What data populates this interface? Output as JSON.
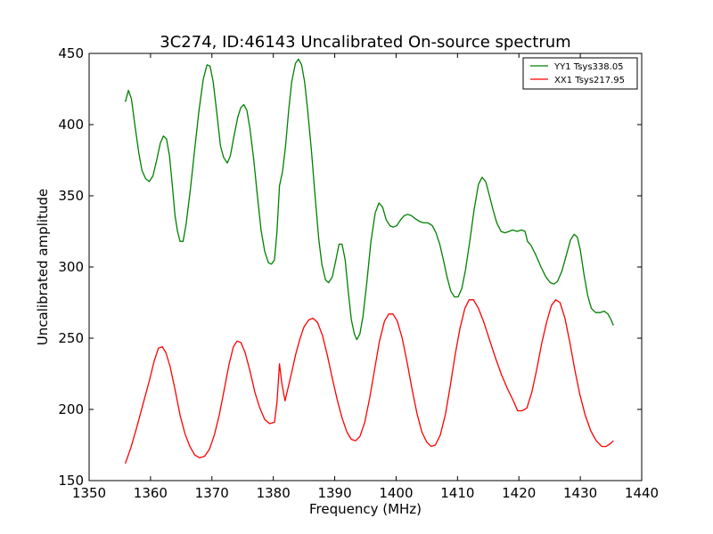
{
  "chart_data": {
    "type": "line",
    "title": "3C274, ID:46143 Uncalibrated On-source spectrum",
    "xlabel": "Frequency (MHz)",
    "ylabel": "Uncalibrated amplitude",
    "xlim": [
      1350,
      1440
    ],
    "ylim": [
      150,
      450
    ],
    "xticks": [
      1350,
      1360,
      1370,
      1380,
      1390,
      1400,
      1410,
      1420,
      1430,
      1440
    ],
    "yticks": [
      150,
      200,
      250,
      300,
      350,
      400,
      450
    ],
    "grid": false,
    "legend_position": "top-right",
    "series": [
      {
        "name": "YY1 Tsys338.05",
        "color": "#008000",
        "points": [
          [
            1355.9,
            416
          ],
          [
            1356.4,
            424
          ],
          [
            1356.9,
            418
          ],
          [
            1357.5,
            398
          ],
          [
            1358.1,
            380
          ],
          [
            1358.6,
            368
          ],
          [
            1359.2,
            362
          ],
          [
            1359.8,
            360
          ],
          [
            1360.4,
            364
          ],
          [
            1361.0,
            375
          ],
          [
            1361.6,
            387
          ],
          [
            1362.1,
            392
          ],
          [
            1362.6,
            390
          ],
          [
            1363.1,
            378
          ],
          [
            1363.6,
            355
          ],
          [
            1364.0,
            336
          ],
          [
            1364.4,
            325
          ],
          [
            1364.8,
            318
          ],
          [
            1365.3,
            318
          ],
          [
            1365.8,
            330
          ],
          [
            1366.5,
            355
          ],
          [
            1367.2,
            383
          ],
          [
            1367.9,
            410
          ],
          [
            1368.6,
            432
          ],
          [
            1369.2,
            442
          ],
          [
            1369.7,
            441
          ],
          [
            1370.2,
            430
          ],
          [
            1370.8,
            408
          ],
          [
            1371.4,
            385
          ],
          [
            1371.9,
            377
          ],
          [
            1372.5,
            373
          ],
          [
            1373.0,
            378
          ],
          [
            1373.6,
            392
          ],
          [
            1374.2,
            405
          ],
          [
            1374.7,
            412
          ],
          [
            1375.2,
            414
          ],
          [
            1375.7,
            410
          ],
          [
            1376.2,
            397
          ],
          [
            1376.8,
            376
          ],
          [
            1377.4,
            350
          ],
          [
            1378.0,
            326
          ],
          [
            1378.6,
            311
          ],
          [
            1379.2,
            303
          ],
          [
            1379.7,
            302
          ],
          [
            1380.2,
            305
          ],
          [
            1380.6,
            325
          ],
          [
            1381.0,
            357
          ],
          [
            1381.5,
            367
          ],
          [
            1382.0,
            385
          ],
          [
            1382.5,
            410
          ],
          [
            1383.0,
            430
          ],
          [
            1383.6,
            443
          ],
          [
            1384.1,
            446
          ],
          [
            1384.6,
            442
          ],
          [
            1385.1,
            430
          ],
          [
            1385.6,
            410
          ],
          [
            1386.2,
            382
          ],
          [
            1386.8,
            350
          ],
          [
            1387.4,
            320
          ],
          [
            1387.9,
            302
          ],
          [
            1388.5,
            291
          ],
          [
            1389.0,
            289
          ],
          [
            1389.6,
            293
          ],
          [
            1390.2,
            305
          ],
          [
            1390.7,
            316
          ],
          [
            1391.2,
            316
          ],
          [
            1391.7,
            305
          ],
          [
            1392.2,
            283
          ],
          [
            1392.7,
            263
          ],
          [
            1393.2,
            253
          ],
          [
            1393.6,
            249
          ],
          [
            1394.1,
            253
          ],
          [
            1394.6,
            265
          ],
          [
            1395.2,
            288
          ],
          [
            1395.9,
            318
          ],
          [
            1396.6,
            338
          ],
          [
            1397.2,
            345
          ],
          [
            1397.8,
            342
          ],
          [
            1398.4,
            333
          ],
          [
            1399.0,
            329
          ],
          [
            1399.5,
            328
          ],
          [
            1400.1,
            329
          ],
          [
            1400.7,
            333
          ],
          [
            1401.3,
            336
          ],
          [
            1401.9,
            337
          ],
          [
            1402.5,
            336
          ],
          [
            1403.1,
            334
          ],
          [
            1403.8,
            332
          ],
          [
            1404.5,
            331
          ],
          [
            1405.2,
            331
          ],
          [
            1405.9,
            329
          ],
          [
            1406.5,
            324
          ],
          [
            1407.1,
            316
          ],
          [
            1407.7,
            305
          ],
          [
            1408.3,
            293
          ],
          [
            1408.9,
            283
          ],
          [
            1409.5,
            279
          ],
          [
            1410.1,
            279
          ],
          [
            1410.7,
            285
          ],
          [
            1411.3,
            298
          ],
          [
            1412.0,
            318
          ],
          [
            1412.7,
            340
          ],
          [
            1413.4,
            358
          ],
          [
            1414.0,
            363
          ],
          [
            1414.6,
            360
          ],
          [
            1415.2,
            350
          ],
          [
            1415.8,
            340
          ],
          [
            1416.4,
            331
          ],
          [
            1417.1,
            325
          ],
          [
            1417.7,
            324
          ],
          [
            1418.4,
            325
          ],
          [
            1419.0,
            326
          ],
          [
            1419.7,
            325
          ],
          [
            1420.4,
            326
          ],
          [
            1421.0,
            325
          ],
          [
            1421.4,
            318
          ],
          [
            1422.0,
            315
          ],
          [
            1422.8,
            308
          ],
          [
            1423.6,
            300
          ],
          [
            1424.4,
            293
          ],
          [
            1425.1,
            289
          ],
          [
            1425.7,
            288
          ],
          [
            1426.3,
            290
          ],
          [
            1427.0,
            297
          ],
          [
            1427.7,
            308
          ],
          [
            1428.4,
            319
          ],
          [
            1429.0,
            323
          ],
          [
            1429.5,
            321
          ],
          [
            1430.0,
            312
          ],
          [
            1430.6,
            295
          ],
          [
            1431.2,
            280
          ],
          [
            1431.8,
            271
          ],
          [
            1432.5,
            268
          ],
          [
            1433.2,
            268
          ],
          [
            1433.9,
            269
          ],
          [
            1434.5,
            267
          ],
          [
            1435.0,
            263
          ],
          [
            1435.4,
            259
          ]
        ]
      },
      {
        "name": "XX1 Tsys217.95",
        "color": "#ff0000",
        "points": [
          [
            1355.9,
            162
          ],
          [
            1356.8,
            173
          ],
          [
            1357.8,
            188
          ],
          [
            1358.8,
            204
          ],
          [
            1359.8,
            220
          ],
          [
            1360.6,
            234
          ],
          [
            1361.3,
            243
          ],
          [
            1361.9,
            244
          ],
          [
            1362.5,
            240
          ],
          [
            1363.2,
            230
          ],
          [
            1364.0,
            214
          ],
          [
            1364.8,
            196
          ],
          [
            1365.6,
            183
          ],
          [
            1366.4,
            174
          ],
          [
            1367.2,
            168
          ],
          [
            1368.0,
            166
          ],
          [
            1368.8,
            167
          ],
          [
            1369.6,
            172
          ],
          [
            1370.4,
            182
          ],
          [
            1371.2,
            196
          ],
          [
            1372.0,
            214
          ],
          [
            1372.8,
            232
          ],
          [
            1373.5,
            244
          ],
          [
            1374.1,
            248
          ],
          [
            1374.7,
            247
          ],
          [
            1375.4,
            240
          ],
          [
            1376.2,
            227
          ],
          [
            1377.0,
            212
          ],
          [
            1377.8,
            201
          ],
          [
            1378.6,
            193
          ],
          [
            1379.4,
            190
          ],
          [
            1380.2,
            191
          ],
          [
            1380.6,
            205
          ],
          [
            1381.0,
            232
          ],
          [
            1381.4,
            218
          ],
          [
            1381.9,
            206
          ],
          [
            1382.4,
            215
          ],
          [
            1383.0,
            226
          ],
          [
            1383.6,
            238
          ],
          [
            1384.3,
            249
          ],
          [
            1385.0,
            258
          ],
          [
            1385.8,
            263
          ],
          [
            1386.5,
            264
          ],
          [
            1387.2,
            261
          ],
          [
            1388.0,
            252
          ],
          [
            1388.8,
            238
          ],
          [
            1389.6,
            222
          ],
          [
            1390.4,
            207
          ],
          [
            1391.2,
            194
          ],
          [
            1392.0,
            184
          ],
          [
            1392.7,
            179
          ],
          [
            1393.4,
            178
          ],
          [
            1394.1,
            181
          ],
          [
            1394.9,
            191
          ],
          [
            1395.7,
            208
          ],
          [
            1396.5,
            228
          ],
          [
            1397.3,
            248
          ],
          [
            1398.1,
            262
          ],
          [
            1398.8,
            267
          ],
          [
            1399.5,
            267
          ],
          [
            1400.2,
            262
          ],
          [
            1401.0,
            250
          ],
          [
            1401.8,
            233
          ],
          [
            1402.6,
            214
          ],
          [
            1403.4,
            197
          ],
          [
            1404.2,
            184
          ],
          [
            1405.0,
            177
          ],
          [
            1405.7,
            174
          ],
          [
            1406.4,
            175
          ],
          [
            1407.2,
            182
          ],
          [
            1408.0,
            196
          ],
          [
            1408.8,
            216
          ],
          [
            1409.6,
            238
          ],
          [
            1410.4,
            257
          ],
          [
            1411.2,
            271
          ],
          [
            1411.9,
            277
          ],
          [
            1412.6,
            277
          ],
          [
            1413.4,
            271
          ],
          [
            1414.3,
            261
          ],
          [
            1415.2,
            249
          ],
          [
            1416.2,
            236
          ],
          [
            1417.2,
            224
          ],
          [
            1418.2,
            214
          ],
          [
            1419.1,
            206
          ],
          [
            1419.8,
            199
          ],
          [
            1420.5,
            199
          ],
          [
            1421.3,
            201
          ],
          [
            1422.1,
            212
          ],
          [
            1422.9,
            228
          ],
          [
            1423.7,
            246
          ],
          [
            1424.5,
            261
          ],
          [
            1425.3,
            273
          ],
          [
            1426.0,
            277
          ],
          [
            1426.7,
            275
          ],
          [
            1427.5,
            264
          ],
          [
            1428.3,
            247
          ],
          [
            1429.1,
            228
          ],
          [
            1429.9,
            211
          ],
          [
            1430.8,
            196
          ],
          [
            1431.7,
            185
          ],
          [
            1432.6,
            178
          ],
          [
            1433.5,
            174
          ],
          [
            1434.2,
            174
          ],
          [
            1434.9,
            176
          ],
          [
            1435.4,
            178
          ]
        ]
      }
    ]
  }
}
